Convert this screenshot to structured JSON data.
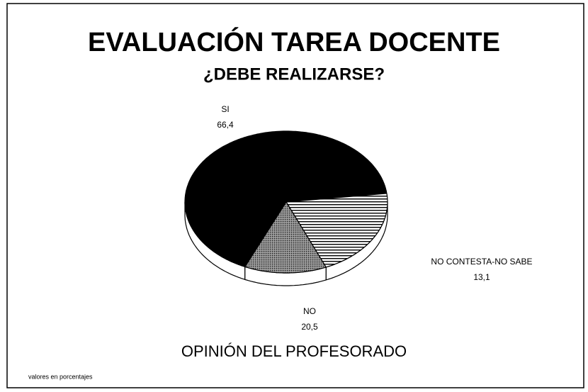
{
  "chart_data": {
    "type": "pie",
    "title": "EVALUACIÓN TAREA DOCENTE",
    "subtitle": "¿DEBE REALIZARSE?",
    "categories": [
      "SI",
      "NO",
      "NO CONTESTA-NO SABE"
    ],
    "values": [
      66.4,
      20.5,
      13.1
    ],
    "value_labels": [
      "66,4",
      "20,5",
      "13,1"
    ],
    "colors": [
      "#000000",
      "#ffffff",
      "#6a6a6a"
    ],
    "caption": "OPINIÓN DEL PROFESORADO",
    "note": "valores en porcentajes"
  }
}
